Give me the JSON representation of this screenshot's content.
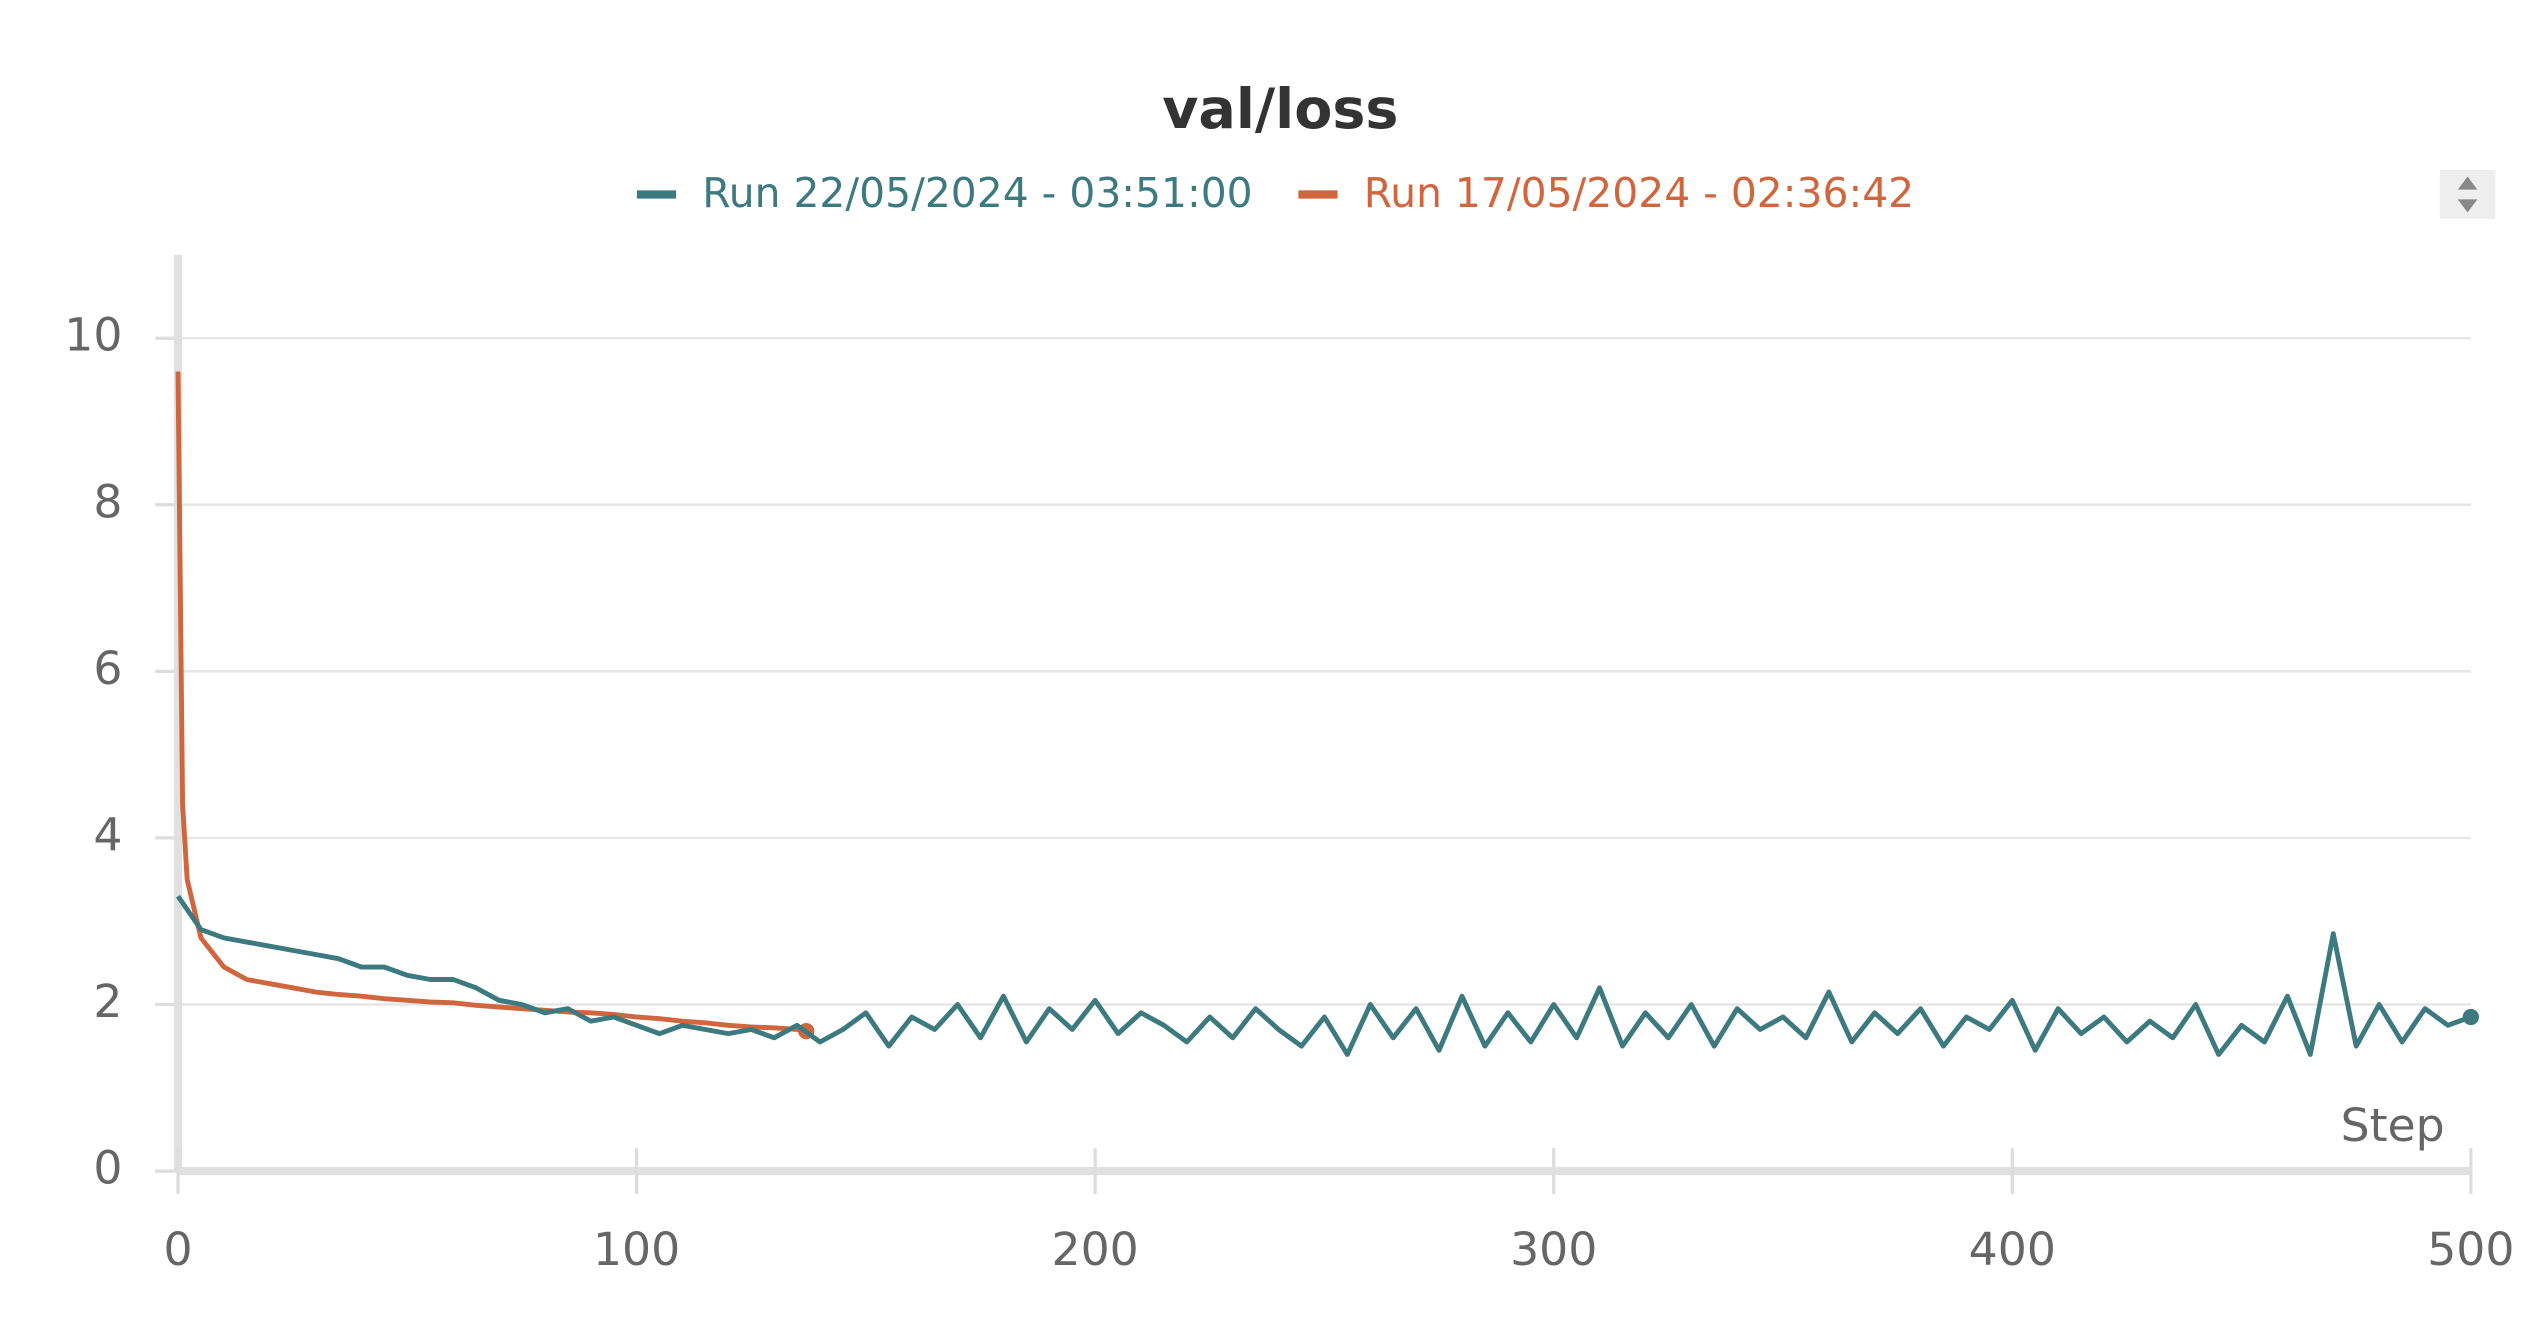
{
  "chart_data": {
    "type": "line",
    "title": "val/loss",
    "x_label": "Step",
    "xlim": [
      0,
      500
    ],
    "ylim": [
      0,
      11
    ],
    "xticks": [
      0,
      100,
      200,
      300,
      400,
      500
    ],
    "yticks": [
      0,
      2,
      4,
      6,
      8,
      10
    ],
    "grid": true,
    "series": [
      {
        "name": "Run 22/05/2024 - 03:51:00",
        "color": "#3d7a7f",
        "x": [
          0,
          5,
          10,
          15,
          20,
          25,
          30,
          35,
          40,
          45,
          50,
          55,
          60,
          65,
          70,
          75,
          80,
          85,
          90,
          95,
          100,
          105,
          110,
          115,
          120,
          125,
          130,
          135,
          140,
          145,
          150,
          155,
          160,
          165,
          170,
          175,
          180,
          185,
          190,
          195,
          200,
          205,
          210,
          215,
          220,
          225,
          230,
          235,
          240,
          245,
          250,
          255,
          260,
          265,
          270,
          275,
          280,
          285,
          290,
          295,
          300,
          305,
          310,
          315,
          320,
          325,
          330,
          335,
          340,
          345,
          350,
          355,
          360,
          365,
          370,
          375,
          380,
          385,
          390,
          395,
          400,
          405,
          410,
          415,
          420,
          425,
          430,
          435,
          440,
          445,
          450,
          455,
          460,
          465,
          470,
          475,
          480,
          485,
          490,
          495,
          500
        ],
        "values": [
          3.3,
          2.9,
          2.8,
          2.75,
          2.7,
          2.65,
          2.6,
          2.55,
          2.45,
          2.45,
          2.35,
          2.3,
          2.3,
          2.2,
          2.05,
          2.0,
          1.9,
          1.95,
          1.8,
          1.85,
          1.75,
          1.65,
          1.75,
          1.7,
          1.65,
          1.7,
          1.6,
          1.75,
          1.55,
          1.7,
          1.9,
          1.5,
          1.85,
          1.7,
          2.0,
          1.6,
          2.1,
          1.55,
          1.95,
          1.7,
          2.05,
          1.65,
          1.9,
          1.75,
          1.55,
          1.85,
          1.6,
          1.95,
          1.7,
          1.5,
          1.85,
          1.4,
          2.0,
          1.6,
          1.95,
          1.45,
          2.1,
          1.5,
          1.9,
          1.55,
          2.0,
          1.6,
          2.2,
          1.5,
          1.9,
          1.6,
          2.0,
          1.5,
          1.95,
          1.7,
          1.85,
          1.6,
          2.15,
          1.55,
          1.9,
          1.65,
          1.95,
          1.5,
          1.85,
          1.7,
          2.05,
          1.45,
          1.95,
          1.65,
          1.85,
          1.55,
          1.8,
          1.6,
          2.0,
          1.4,
          1.75,
          1.55,
          2.1,
          1.4,
          2.85,
          1.5,
          2.0,
          1.55,
          1.95,
          1.75,
          1.85
        ]
      },
      {
        "name": "Run 17/05/2024 - 02:36:42",
        "color": "#d0663e",
        "x": [
          0,
          1,
          2,
          5,
          10,
          15,
          20,
          25,
          30,
          35,
          40,
          45,
          50,
          55,
          60,
          65,
          70,
          75,
          80,
          85,
          90,
          95,
          100,
          105,
          110,
          115,
          120,
          125,
          130,
          135,
          137
        ],
        "values": [
          9.6,
          4.4,
          3.5,
          2.8,
          2.45,
          2.3,
          2.25,
          2.2,
          2.15,
          2.12,
          2.1,
          2.07,
          2.05,
          2.03,
          2.02,
          1.99,
          1.97,
          1.95,
          1.93,
          1.91,
          1.9,
          1.88,
          1.85,
          1.83,
          1.8,
          1.78,
          1.75,
          1.73,
          1.72,
          1.7,
          1.68
        ]
      }
    ]
  }
}
